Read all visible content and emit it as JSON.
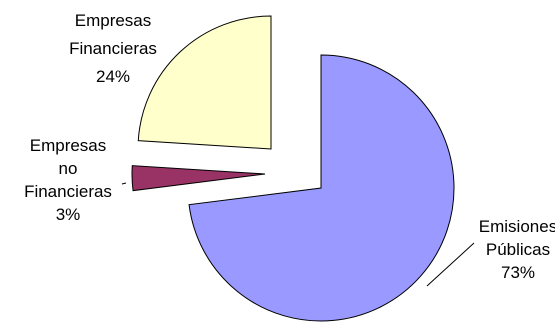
{
  "chart_data": {
    "type": "pie",
    "exploded": true,
    "slices": [
      {
        "name": "Emisiones Públicas",
        "value": 73,
        "label_lines": [
          "Emisiones",
          "Públicas",
          "73%"
        ],
        "color": "#9999ff"
      },
      {
        "name": "Empresas no Financieras",
        "value": 3,
        "label_lines": [
          "Empresas",
          "no",
          "Financieras",
          "3%"
        ],
        "color": "#993366"
      },
      {
        "name": "Empresas Financieras",
        "value": 24,
        "label_lines": [
          "Empresas",
          "Financieras",
          "24%"
        ],
        "color": "#ffffcc"
      }
    ]
  }
}
